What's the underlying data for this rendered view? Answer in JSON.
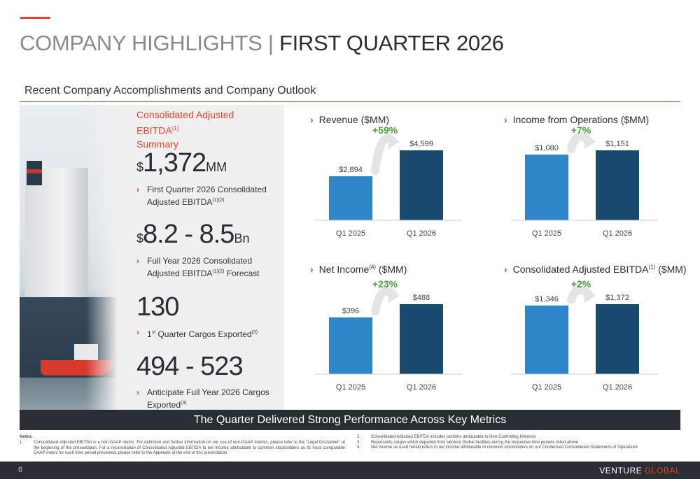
{
  "header": {
    "title_part1": "COMPANY HIGHLIGHTS | ",
    "title_part2": "FIRST QUARTER 2026"
  },
  "section_title": "Recent Company Accomplishments and Company Outlook",
  "summary": {
    "heading": "Consolidated Adjusted EBITDA",
    "heading_sup": "(1)",
    "heading_line2": "Summary",
    "metrics": [
      {
        "prefix": "$",
        "value": "1,372",
        "unit": "MM",
        "desc": "First Quarter 2026 Consolidated Adjusted EBITDA",
        "desc_sup": "(1)(2)",
        "desc_after": ""
      },
      {
        "prefix": "$",
        "value": "8.2 - 8.5",
        "unit": "Bn",
        "desc": "Full Year 2026 Consolidated Adjusted EBITDA",
        "desc_sup": "(1)(2)",
        "desc_after": " Forecast"
      },
      {
        "prefix": "",
        "value": "130",
        "unit": "",
        "desc": "1",
        "desc_sup": "st",
        "desc_after": " Quarter Cargos Exported",
        "desc_sup2": "(3)"
      },
      {
        "prefix": "",
        "value": "494 - 523",
        "unit": "",
        "desc": "Anticipate Full Year 2026 Cargos Exported",
        "desc_sup": "(3)",
        "desc_after": ""
      }
    ]
  },
  "chart_data": [
    {
      "type": "bar",
      "title": "Revenue ($MM)",
      "categories": [
        "Q1 2025",
        "Q1 2026"
      ],
      "values": [
        2894,
        4599
      ],
      "value_labels": [
        "$2,894",
        "$4,599"
      ],
      "growth_label": "+59%"
    },
    {
      "type": "bar",
      "title": "Income from Operations ($MM)",
      "categories": [
        "Q1 2025",
        "Q1 2026"
      ],
      "values": [
        1080,
        1151
      ],
      "value_labels": [
        "$1,080",
        "$1,151"
      ],
      "growth_label": "+7%"
    },
    {
      "type": "bar",
      "title": "Net Income",
      "title_sup": "(4)",
      "title_after": " ($MM)",
      "categories": [
        "Q1 2025",
        "Q1 2026"
      ],
      "values": [
        396,
        488
      ],
      "value_labels": [
        "$396",
        "$488"
      ],
      "growth_label": "+23%"
    },
    {
      "type": "bar",
      "title": "Consolidated Adjusted EBITDA",
      "title_sup": "(1)",
      "title_after": " ($MM)",
      "categories": [
        "Q1 2025",
        "Q1 2026"
      ],
      "values": [
        1346,
        1372
      ],
      "value_labels": [
        "$1,346",
        "$1,372"
      ],
      "growth_label": "+2%"
    }
  ],
  "colors": {
    "bar_2025": "#2e86c9",
    "bar_2026": "#1b4a70",
    "accent": "#e8412c",
    "growth": "#4aa331",
    "dark": "#2a2e34"
  },
  "banner": "The Quarter Delivered Strong Performance Across Key Metrics",
  "notes": {
    "label": "Notes:",
    "items": [
      {
        "num": "1.",
        "text": "Consolidated Adjusted EBITDA is a non-GAAP metric. For definition and further information on our use of non-GAAP metrics, please refer to the “Legal Disclaimer” at the beginning of the presentation. For a reconciliation of Consolidated Adjusted EBITDA to net income attributable to common stockholders as its most comparable GAAP metric for each time period presented, please refer to the Appendix at the end of this presentation"
      },
      {
        "num": "2.",
        "text": "Consolidated Adjusted EBITDA includes portions attributable to Non-Controlling Interests"
      },
      {
        "num": "3.",
        "text": "Represents cargos which departed from Venture Global facilities during the respective time periods listed above"
      },
      {
        "num": "4.",
        "text": "Net income as used herein refers to net income attributable to common stockholders on our Condensed Consolidated Statements of Operations"
      }
    ]
  },
  "footer": {
    "page": "6",
    "brand_part1": "VENTURE",
    "brand_part2": " GLOBAL"
  }
}
